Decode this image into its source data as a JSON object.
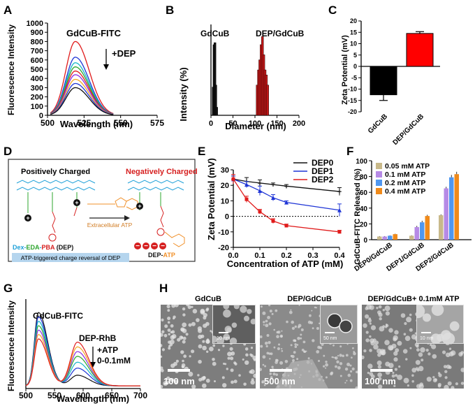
{
  "panels": {
    "A": "A",
    "B": "B",
    "C": "C",
    "D": "D",
    "E": "E",
    "F": "F",
    "G": "G",
    "H": "H"
  },
  "colors": {
    "red": "#e01b1b",
    "blue": "#1f35d6",
    "black": "#111111",
    "green": "#2ea52e",
    "cyan": "#16b6c9",
    "purple": "#8a2be2",
    "orange": "#f5a623",
    "tan": "#c9b98a",
    "violet": "#b68ae6",
    "skyblue": "#4f97f0",
    "darkorange": "#f08a1a"
  },
  "chart_data": [
    {
      "panel": "A",
      "type": "line",
      "title": "GdCuB-FITC",
      "annotation": "+DEP",
      "xlabel": "Wavelength (nm)",
      "ylabel": "Fluorescence Intensity",
      "xlim": [
        500,
        575
      ],
      "ylim": [
        0,
        1000
      ],
      "xticks": [
        "500",
        "525",
        "550",
        "575"
      ],
      "yticks": [
        "0",
        "100",
        "200",
        "300",
        "400",
        "500",
        "600",
        "700",
        "800",
        "900",
        "1000"
      ],
      "peak_x": 519,
      "series": [
        {
          "name": "0",
          "peak": 800,
          "color": "#e01b1b"
        },
        {
          "name": "1",
          "peak": 630,
          "color": "#1f35d6"
        },
        {
          "name": "2",
          "peak": 570,
          "color": "#16b6c9"
        },
        {
          "name": "3",
          "peak": 525,
          "color": "#2ea52e"
        },
        {
          "name": "4",
          "peak": 480,
          "color": "#e01b1b"
        },
        {
          "name": "5",
          "peak": 440,
          "color": "#8a2be2"
        },
        {
          "name": "6",
          "peak": 390,
          "color": "#f5a623"
        },
        {
          "name": "7",
          "peak": 345,
          "color": "#1f35d6"
        },
        {
          "name": "8",
          "peak": 300,
          "color": "#111111"
        }
      ]
    },
    {
      "panel": "B",
      "type": "bar",
      "xlabel": "Diameter (nm)",
      "ylabel": "Intensity (%)",
      "xlim": [
        0,
        200
      ],
      "ylim": [
        0,
        90
      ],
      "xticks": [
        "0",
        "50",
        "100",
        "150",
        "200"
      ],
      "labels": [
        "GdCuB",
        "DEP/GdCuB"
      ],
      "series": [
        {
          "name": "GdCuB",
          "color": "#111111",
          "x": [
            5,
            7,
            9,
            11,
            13
          ],
          "values": [
            28,
            70,
            72,
            30,
            8
          ]
        },
        {
          "name": "DEP/GdCuB",
          "color": "#c01616",
          "x": [
            105,
            108,
            111,
            114,
            117,
            120,
            123,
            126,
            129
          ],
          "values": [
            30,
            45,
            55,
            70,
            78,
            60,
            45,
            40,
            30
          ]
        }
      ]
    },
    {
      "panel": "C",
      "type": "bar",
      "ylabel": "Zeta Potential (mV)",
      "ylim": [
        -20,
        20
      ],
      "yticks": [
        "-20",
        "-15",
        "-10",
        "-5",
        "0",
        "5",
        "10",
        "15",
        "20"
      ],
      "categories": [
        "GdCuB",
        "DEP/GdCuB"
      ],
      "values": [
        -12.5,
        14.5
      ],
      "errors": [
        2.5,
        0.8
      ],
      "bar_colors": [
        "#000000",
        "#ff0000"
      ]
    },
    {
      "panel": "E",
      "type": "line",
      "xlabel": "Concentration of ATP (mM)",
      "ylabel": "Zeta Potential (mV)",
      "xlim": [
        0,
        0.4
      ],
      "ylim": [
        -20,
        30
      ],
      "xticks": [
        "0.0",
        "0.1",
        "0.2",
        "0.3",
        "0.4"
      ],
      "yticks": [
        "-20",
        "-10",
        "0",
        "10",
        "20",
        "30"
      ],
      "x": [
        0,
        0.05,
        0.1,
        0.15,
        0.2,
        0.4
      ],
      "series": [
        {
          "name": "DEP0",
          "color": "#111111",
          "values": [
            24,
            22.5,
            21.5,
            20.5,
            19.5,
            16
          ],
          "errors": [
            2,
            2.5,
            2,
            1,
            1,
            2.5
          ]
        },
        {
          "name": "DEP1",
          "color": "#1f35d6",
          "values": [
            24,
            20.5,
            16.5,
            12,
            9,
            4
          ],
          "errors": [
            2,
            2,
            3,
            2,
            1,
            4
          ]
        },
        {
          "name": "DEP2",
          "color": "#e01b1b",
          "values": [
            24,
            11,
            3,
            -3,
            -6,
            -10
          ],
          "errors": [
            3,
            2,
            1.5,
            1.5,
            1,
            1
          ]
        }
      ]
    },
    {
      "panel": "F",
      "type": "bar",
      "ylabel": "GdCuB-FITC Released (%)",
      "ylim": [
        0,
        100
      ],
      "yticks": [
        "0",
        "20",
        "40",
        "60",
        "80",
        "100"
      ],
      "categories": [
        "DEP0/GdCuB",
        "DEP1/GdCuB",
        "DEP2/GdCuB"
      ],
      "series": [
        {
          "name": "0.05 mM ATP",
          "color": "#c9b98a",
          "values": [
            4,
            5,
            31
          ],
          "errors": [
            0.5,
            0.5,
            1
          ]
        },
        {
          "name": "0.1 mM ATP",
          "color": "#b68ae6",
          "values": [
            4,
            16,
            65
          ],
          "errors": [
            0.5,
            1.5,
            2
          ]
        },
        {
          "name": "0.2 mM ATP",
          "color": "#4f97f0",
          "values": [
            5,
            22,
            79
          ],
          "errors": [
            0.5,
            2,
            3
          ]
        },
        {
          "name": "0.4 mM ATP",
          "color": "#f08a1a",
          "values": [
            7,
            30,
            83
          ],
          "errors": [
            0.5,
            1.5,
            3
          ]
        }
      ]
    },
    {
      "panel": "G",
      "type": "line",
      "labels": [
        "GdCuB-FITC",
        "DEP-RhB",
        "+ATP",
        "0-0.1mM"
      ],
      "xlabel": "Wavelength (nm)",
      "ylabel": "Fluorescence Intensity",
      "xlim": [
        500,
        700
      ],
      "xticks": [
        "500",
        "550",
        "600",
        "650",
        "700"
      ],
      "series": [
        {
          "color": "#111111",
          "p1": 1.0,
          "p2": 0.18
        },
        {
          "color": "#1f35d6",
          "p1": 0.94,
          "p2": 0.3
        },
        {
          "color": "#16b6c9",
          "p1": 0.88,
          "p2": 0.4
        },
        {
          "color": "#2ea52e",
          "p1": 0.82,
          "p2": 0.5
        },
        {
          "color": "#8a2be2",
          "p1": 0.76,
          "p2": 0.58
        },
        {
          "color": "#f5a623",
          "p1": 0.7,
          "p2": 0.66
        },
        {
          "color": "#e01b1b",
          "p1": 0.64,
          "p2": 0.74
        }
      ]
    }
  ],
  "panel_d": {
    "positive": "Positively Charged",
    "negative": "Negatively Charged",
    "extracellular": "Extracellular ATP",
    "dex": "Dex-",
    "eda": "EDA",
    "dash": "-",
    "pba": "PBA",
    "dep": " (DEP)",
    "dep_prod": "DEP-",
    "atp": "ATP",
    "footer": "ATP-triggered charge reversal of DEP"
  },
  "panel_h": {
    "titles": [
      "GdCuB",
      "DEP/GdCuB",
      "DEP/GdCuB+ 0.1mM ATP"
    ],
    "scale_main": [
      "100 nm",
      "500 nm",
      "100 nm"
    ],
    "scale_inset": [
      "10 nm",
      "50 nm",
      "10 nm"
    ]
  }
}
